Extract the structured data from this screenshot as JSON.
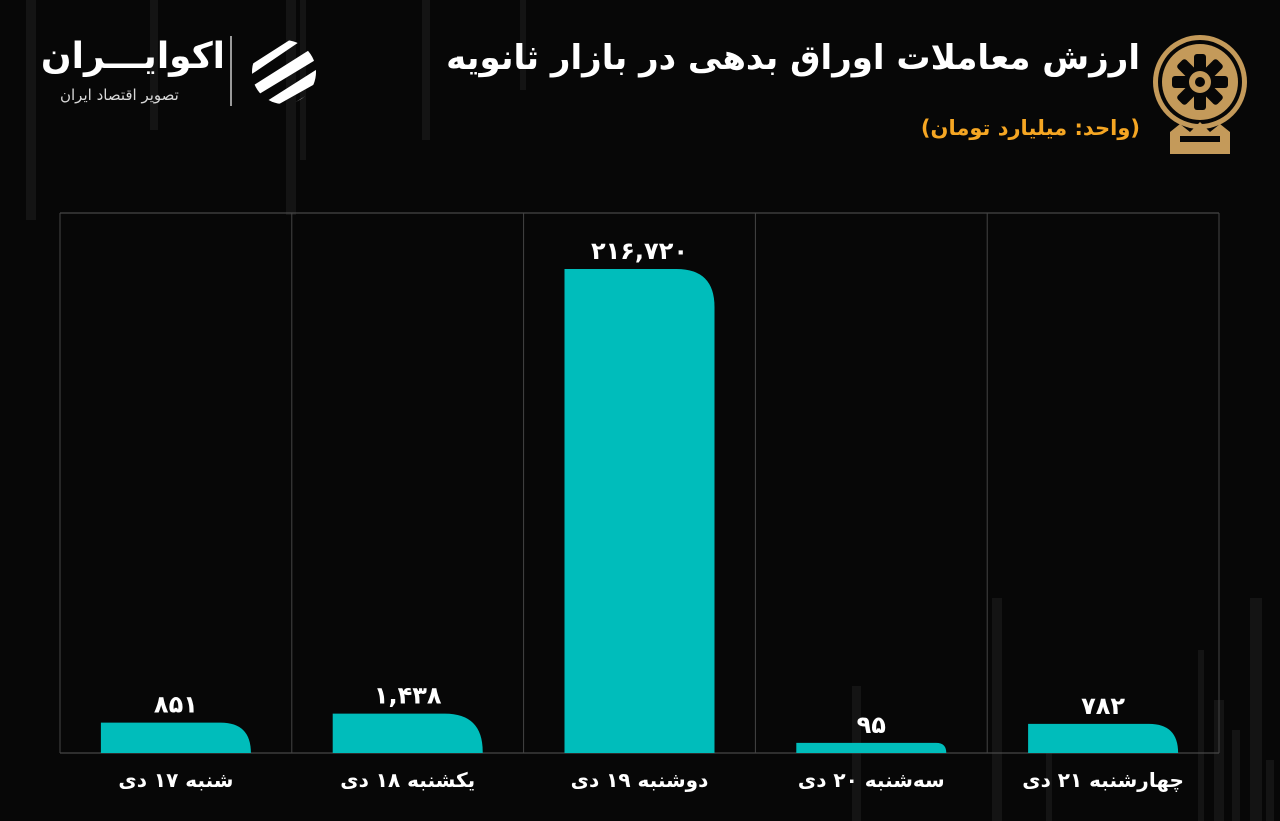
{
  "header": {
    "title": "ارزش معاملات اوراق بدهی در بازار ثانویه",
    "unit": "(واحد: میلیارد تومان)"
  },
  "brand": {
    "name": "اکوایـــران",
    "tagline": "تصویر اقتصاد ایران"
  },
  "colors": {
    "background": "#070707",
    "bar": "#00bdbb",
    "accent": "#f5a623",
    "logo_gold": "#c49a5a"
  },
  "icons": {
    "exchange_logo": "tehran-stock-exchange-emblem",
    "brand_mark": "ecoiran-striped-sphere"
  },
  "chart_data": {
    "type": "bar",
    "title": "ارزش معاملات اوراق بدهی در بازار ثانویه",
    "subtitle": "(واحد: میلیارد تومان)",
    "categories": [
      "شنبه ۱۷ دی",
      "یکشنبه ۱۸ دی",
      "دوشنبه ۱۹ دی",
      "سه‌شنبه ۲۰ دی",
      "چهارشنبه ۲۱ دی"
    ],
    "values": [
      851,
      1438,
      216720,
      95,
      782
    ],
    "value_labels": [
      "۸۵۱",
      "۱,۴۳۸",
      "۲۱۶,۷۲۰",
      "۹۵",
      "۷۸۲"
    ],
    "grid": false,
    "legend": "none",
    "note": "bar heights are visually stylized, not proportional to values"
  }
}
